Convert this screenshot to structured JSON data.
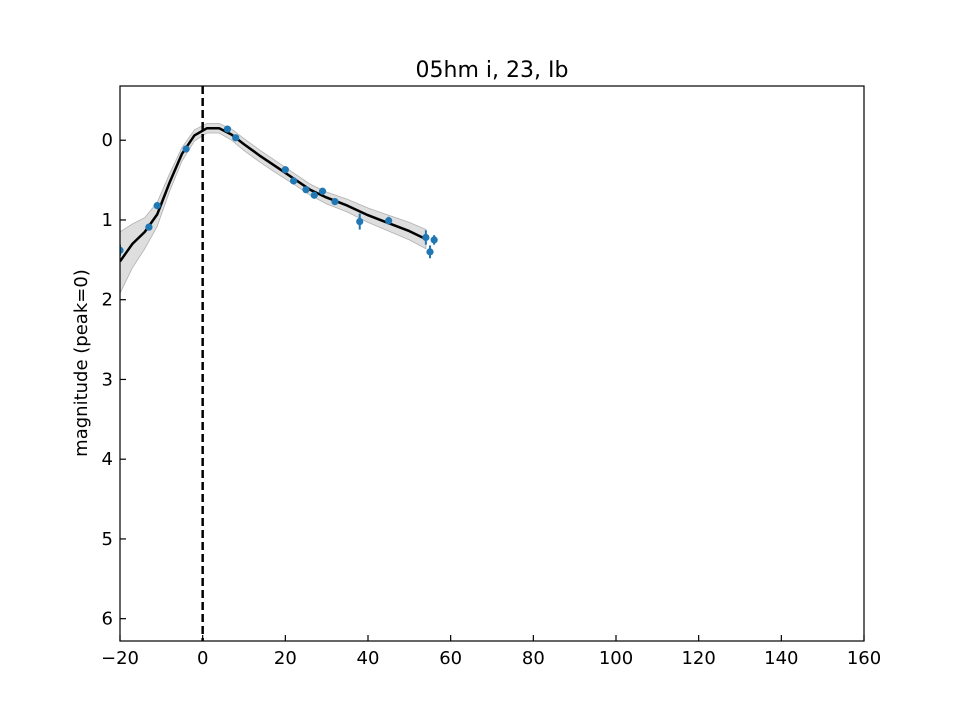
{
  "chart_data": {
    "type": "scatter",
    "title": "05hm i, 23, Ib",
    "xlabel": "",
    "ylabel": "magnitude (peak=0)",
    "xlim": [
      -20,
      160
    ],
    "ylim": [
      -0.68,
      6.28
    ],
    "y_inverted": true,
    "xticks": [
      -20,
      0,
      20,
      40,
      60,
      80,
      100,
      120,
      140,
      160
    ],
    "yticks": [
      0,
      1,
      2,
      3,
      4,
      5,
      6
    ],
    "peak_marker": {
      "x": 0,
      "style": "dashed",
      "color": "#000000"
    },
    "observations": {
      "color": "#1f77b4",
      "points": [
        {
          "x": -20.0,
          "y": 1.38,
          "err": 0.07
        },
        {
          "x": -13.0,
          "y": 1.09,
          "err": 0.04
        },
        {
          "x": -11.0,
          "y": 0.82,
          "err": 0.04
        },
        {
          "x": -4.0,
          "y": 0.11,
          "err": 0.03
        },
        {
          "x": 6.0,
          "y": -0.14,
          "err": 0.03
        },
        {
          "x": 8.0,
          "y": -0.03,
          "err": 0.03
        },
        {
          "x": 20.0,
          "y": 0.37,
          "err": 0.03
        },
        {
          "x": 22.0,
          "y": 0.51,
          "err": 0.03
        },
        {
          "x": 25.0,
          "y": 0.62,
          "err": 0.03
        },
        {
          "x": 27.0,
          "y": 0.69,
          "err": 0.04
        },
        {
          "x": 29.0,
          "y": 0.64,
          "err": 0.04
        },
        {
          "x": 32.0,
          "y": 0.77,
          "err": 0.04
        },
        {
          "x": 38.0,
          "y": 1.02,
          "err": 0.1
        },
        {
          "x": 45.0,
          "y": 1.01,
          "err": 0.05
        },
        {
          "x": 54.0,
          "y": 1.22,
          "err": 0.09
        },
        {
          "x": 55.0,
          "y": 1.4,
          "err": 0.08
        },
        {
          "x": 56.0,
          "y": 1.25,
          "err": 0.06
        }
      ]
    },
    "model": {
      "color": "#000000",
      "band_color": "#c8c8c8",
      "points": [
        {
          "x": -20,
          "y": 1.52,
          "lo": 1.15,
          "hi": 1.92
        },
        {
          "x": -17,
          "y": 1.3,
          "lo": 1.05,
          "hi": 1.6
        },
        {
          "x": -14,
          "y": 1.15,
          "lo": 0.97,
          "hi": 1.36
        },
        {
          "x": -11,
          "y": 0.93,
          "lo": 0.78,
          "hi": 1.08
        },
        {
          "x": -8,
          "y": 0.53,
          "lo": 0.42,
          "hi": 0.64
        },
        {
          "x": -5,
          "y": 0.17,
          "lo": 0.09,
          "hi": 0.26
        },
        {
          "x": -2,
          "y": -0.06,
          "lo": -0.13,
          "hi": 0.01
        },
        {
          "x": 1,
          "y": -0.15,
          "lo": -0.21,
          "hi": -0.09
        },
        {
          "x": 4,
          "y": -0.15,
          "lo": -0.21,
          "hi": -0.09
        },
        {
          "x": 7,
          "y": -0.07,
          "lo": -0.14,
          "hi": 0.0
        },
        {
          "x": 10,
          "y": 0.05,
          "lo": -0.02,
          "hi": 0.13
        },
        {
          "x": 14,
          "y": 0.2,
          "lo": 0.13,
          "hi": 0.28
        },
        {
          "x": 18,
          "y": 0.34,
          "lo": 0.27,
          "hi": 0.42
        },
        {
          "x": 22,
          "y": 0.48,
          "lo": 0.41,
          "hi": 0.55
        },
        {
          "x": 26,
          "y": 0.62,
          "lo": 0.55,
          "hi": 0.69
        },
        {
          "x": 30,
          "y": 0.72,
          "lo": 0.65,
          "hi": 0.8
        },
        {
          "x": 35,
          "y": 0.82,
          "lo": 0.74,
          "hi": 0.9
        },
        {
          "x": 40,
          "y": 0.94,
          "lo": 0.85,
          "hi": 1.03
        },
        {
          "x": 45,
          "y": 1.04,
          "lo": 0.94,
          "hi": 1.14
        },
        {
          "x": 50,
          "y": 1.14,
          "lo": 1.03,
          "hi": 1.25
        },
        {
          "x": 54,
          "y": 1.24,
          "lo": 1.12,
          "hi": 1.36
        }
      ]
    }
  }
}
